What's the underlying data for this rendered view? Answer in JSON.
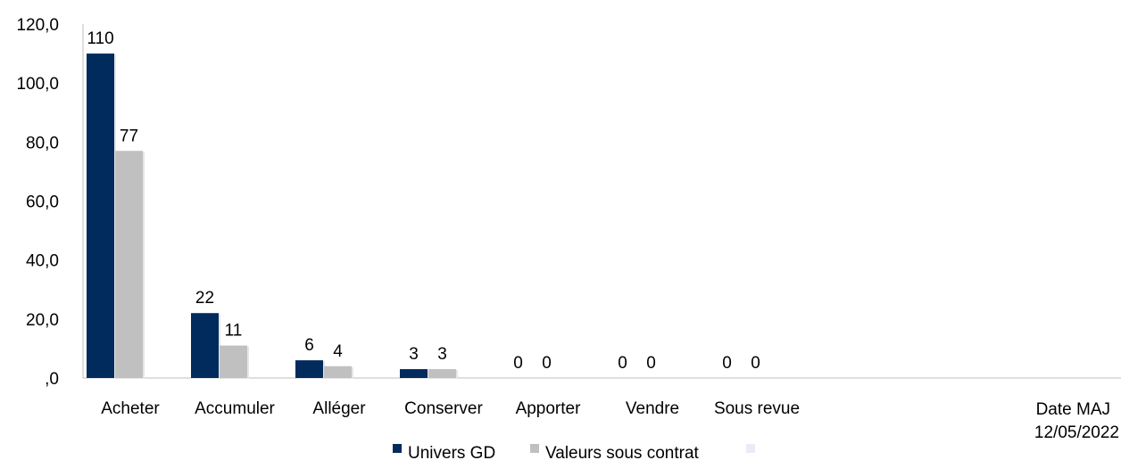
{
  "chart_data": {
    "type": "bar",
    "categories": [
      "Acheter",
      "Accumuler",
      "Alléger",
      "Conserver",
      "Apporter",
      "Vendre",
      "Sous revue"
    ],
    "series": [
      {
        "name": "Univers GD",
        "values": [
          110,
          22,
          6,
          3,
          0,
          0,
          0
        ],
        "color": "#002b5c"
      },
      {
        "name": "Valeurs sous contrat",
        "values": [
          77,
          11,
          4,
          3,
          0,
          0,
          0
        ],
        "color": "#c0c0c0"
      }
    ],
    "y_ticks": [
      ",0",
      "20,0",
      "40,0",
      "60,0",
      "80,0",
      "100,0",
      "120,0"
    ],
    "ylim": [
      0,
      120
    ],
    "grid": false,
    "legend_position": "bottom",
    "legend_extra_color": "#efe8f7",
    "note_lines": [
      "Date MAJ",
      "12/05/2022"
    ]
  }
}
